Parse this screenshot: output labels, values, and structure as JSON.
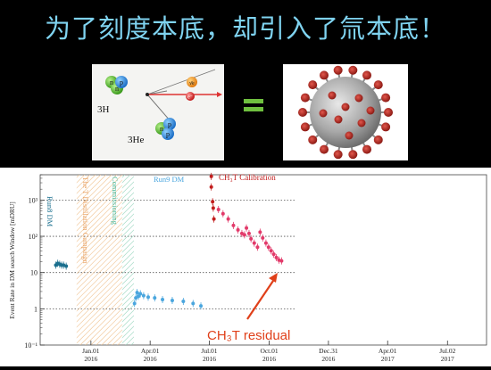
{
  "title": "为了刻度本底，却引入了氚本底！",
  "decay": {
    "tritium": "3H",
    "helium": "3He",
    "n": "n",
    "p": "p",
    "electron": "e⁻",
    "antineutrino": "ν̄e"
  },
  "equals": "=",
  "chart_data": {
    "type": "scatter",
    "ylabel": "Event Rate in DM search Window [mDRU]",
    "y_scale": "log",
    "ylim": [
      0.1,
      5000
    ],
    "y_ticks": [
      "10⁻¹",
      "1",
      "10",
      "10²",
      "10³"
    ],
    "x_ticks": [
      {
        "date": "2016-01-01",
        "label": [
          "Jan.01",
          "2016"
        ]
      },
      {
        "date": "2016-04-01",
        "label": [
          "Apr.01",
          "2016"
        ]
      },
      {
        "date": "2016-07-01",
        "label": [
          "Jul.01",
          "2016"
        ]
      },
      {
        "date": "2016-10-01",
        "label": [
          "Oct.01",
          "2016"
        ]
      },
      {
        "date": "2016-12-31",
        "label": [
          "Dec.31",
          "2016"
        ]
      },
      {
        "date": "2017-04-01",
        "label": [
          "Apr.01",
          "2017"
        ]
      },
      {
        "date": "2017-07-02",
        "label": [
          "Jul.02",
          "2017"
        ]
      }
    ],
    "period_labels": {
      "run8": "Run8 DM",
      "tritium_removal": "The T Distillation Campaign",
      "commissioning": "Commissioning",
      "run9": "Run9 DM",
      "calibration": "CH₃T Calibration"
    },
    "annotation": "CH₃T residual",
    "series": [
      {
        "period": "run8",
        "color": "#1a6f8e",
        "points": [
          [
            "2015-11-08",
            16
          ],
          [
            "2015-11-11",
            18
          ],
          [
            "2015-11-14",
            17
          ],
          [
            "2015-11-17",
            16
          ],
          [
            "2015-11-20",
            16
          ],
          [
            "2015-11-24",
            15
          ]
        ]
      },
      {
        "period": "run9",
        "color": "#4aa6de",
        "points": [
          [
            "2016-03-08",
            1.4
          ],
          [
            "2016-03-10",
            2.0
          ],
          [
            "2016-03-12",
            2.8
          ],
          [
            "2016-03-14",
            2.2
          ],
          [
            "2016-03-17",
            2.6
          ],
          [
            "2016-03-22",
            2.3
          ],
          [
            "2016-03-29",
            2.1
          ],
          [
            "2016-04-08",
            2.0
          ],
          [
            "2016-04-20",
            1.8
          ],
          [
            "2016-05-05",
            1.7
          ],
          [
            "2016-05-22",
            1.6
          ],
          [
            "2016-06-06",
            1.4
          ],
          [
            "2016-06-18",
            1.2
          ]
        ]
      },
      {
        "period": "calibration",
        "color": "#c21e1e",
        "points": [
          [
            "2016-07-04",
            4500
          ],
          [
            "2016-07-04",
            2300
          ],
          [
            "2016-07-06",
            900
          ],
          [
            "2016-07-07",
            600
          ],
          [
            "2016-07-08",
            300
          ]
        ]
      },
      {
        "period": "post-calibration",
        "color": "#e23a6a",
        "points": [
          [
            "2016-07-15",
            550
          ],
          [
            "2016-07-22",
            420
          ],
          [
            "2016-07-30",
            300
          ],
          [
            "2016-08-07",
            200
          ],
          [
            "2016-08-14",
            150
          ],
          [
            "2016-08-20",
            120
          ],
          [
            "2016-08-24",
            110
          ],
          [
            "2016-08-27",
            170
          ],
          [
            "2016-08-31",
            120
          ],
          [
            "2016-09-03",
            85
          ],
          [
            "2016-09-08",
            65
          ],
          [
            "2016-09-13",
            50
          ],
          [
            "2016-09-17",
            130
          ],
          [
            "2016-09-21",
            90
          ],
          [
            "2016-09-26",
            65
          ],
          [
            "2016-09-30",
            50
          ],
          [
            "2016-10-04",
            40
          ],
          [
            "2016-10-08",
            32
          ],
          [
            "2016-10-12",
            26
          ],
          [
            "2016-10-16",
            22
          ],
          [
            "2016-10-20",
            21
          ]
        ]
      }
    ]
  }
}
